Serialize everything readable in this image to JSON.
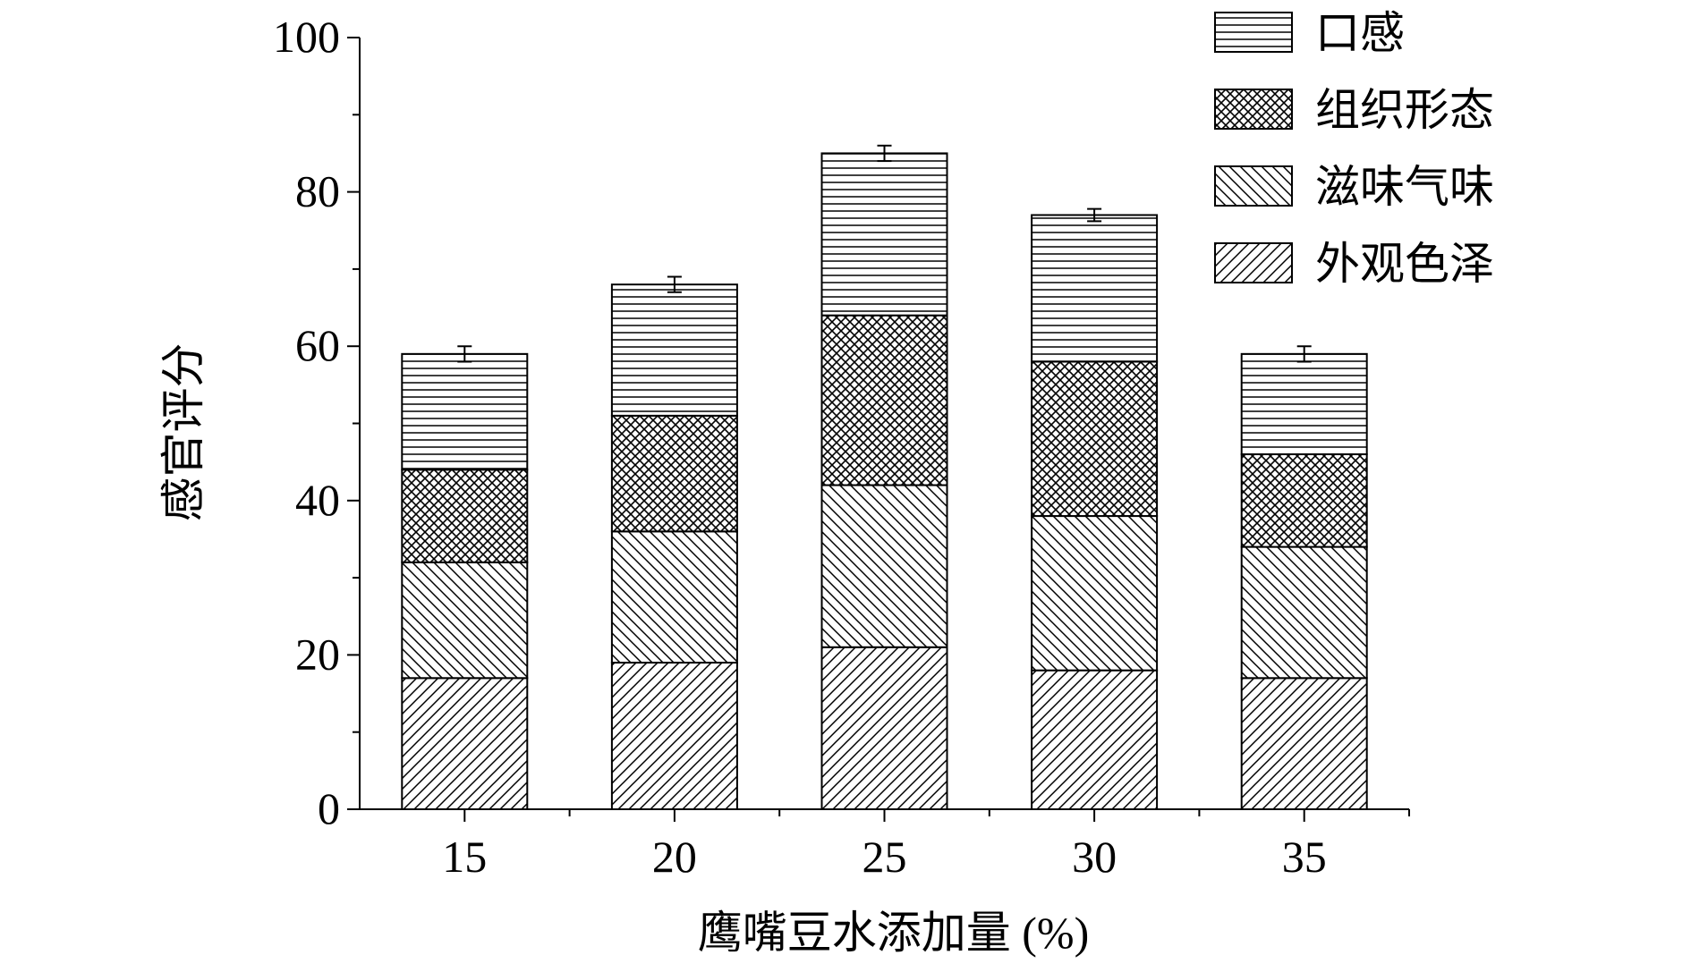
{
  "chart_data": {
    "type": "bar",
    "stacked": true,
    "title": "",
    "xlabel": "鹰嘴豆水添加量 (%)",
    "ylabel": "感官评分",
    "categories": [
      "15",
      "20",
      "25",
      "30",
      "35"
    ],
    "ylim": [
      0,
      100
    ],
    "yticks": [
      "0",
      "20",
      "40",
      "60",
      "80",
      "100"
    ],
    "series": [
      {
        "name": "外观色泽",
        "values": [
          17,
          19,
          21,
          18,
          17
        ],
        "pattern": "diagonal-forward"
      },
      {
        "name": "滋味气味",
        "values": [
          15,
          17,
          21,
          20,
          17
        ],
        "pattern": "diagonal-backward"
      },
      {
        "name": "组织形态",
        "values": [
          12,
          15,
          22,
          20,
          12
        ],
        "pattern": "crosshatch"
      },
      {
        "name": "口感",
        "values": [
          15,
          17,
          21,
          19,
          13
        ],
        "pattern": "horizontal"
      }
    ],
    "error": [
      1.0,
      1.0,
      1.0,
      0.8,
      1.0
    ],
    "legend_order": [
      "口感",
      "组织形态",
      "滋味气味",
      "外观色泽"
    ],
    "legend_position": "top-right",
    "grid": false,
    "colors": {
      "stroke": "#000000",
      "background": "#ffffff"
    }
  }
}
